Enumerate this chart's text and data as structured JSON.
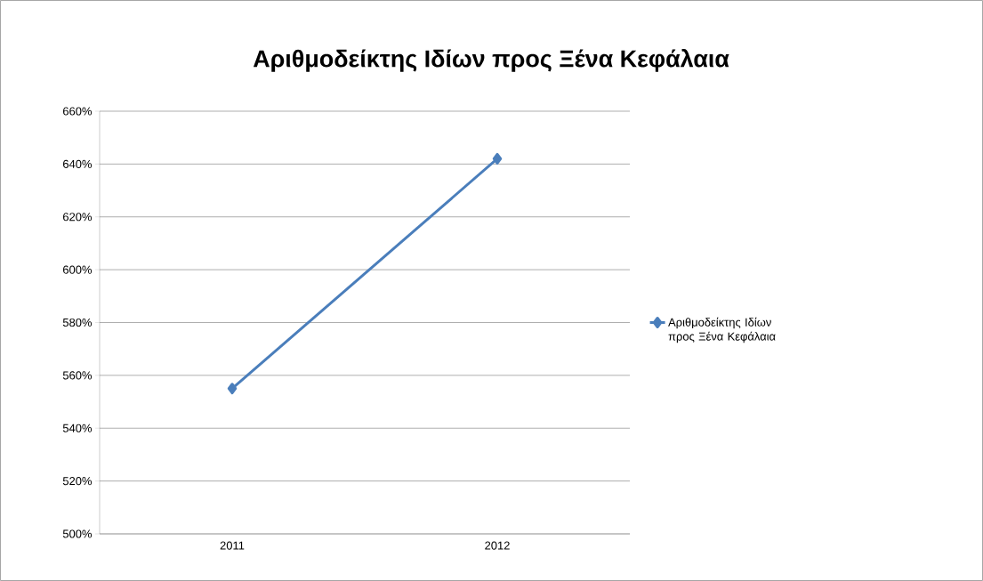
{
  "chart_data": {
    "type": "line",
    "title": "Αριθμοδείκτης Ιδίων προς Ξένα Κεφάλαια",
    "categories": [
      "2011",
      "2012"
    ],
    "series": [
      {
        "name": "Αριθμοδείκτης Ιδίων προς Ξένα Κεφάλαια",
        "color": "#4a7ebb",
        "values": [
          555,
          642
        ]
      }
    ],
    "ylim": [
      500,
      660
    ],
    "yticks": [
      {
        "value": 500,
        "label": "500%"
      },
      {
        "value": 520,
        "label": "520%"
      },
      {
        "value": 540,
        "label": "540%"
      },
      {
        "value": 560,
        "label": "560%"
      },
      {
        "value": 580,
        "label": "580%"
      },
      {
        "value": 600,
        "label": "600%"
      },
      {
        "value": 620,
        "label": "620%"
      },
      {
        "value": 640,
        "label": "640%"
      },
      {
        "value": 660,
        "label": "660%"
      }
    ],
    "grid": "y",
    "legend": "right",
    "marker": "diamond",
    "line_style": "solid"
  }
}
